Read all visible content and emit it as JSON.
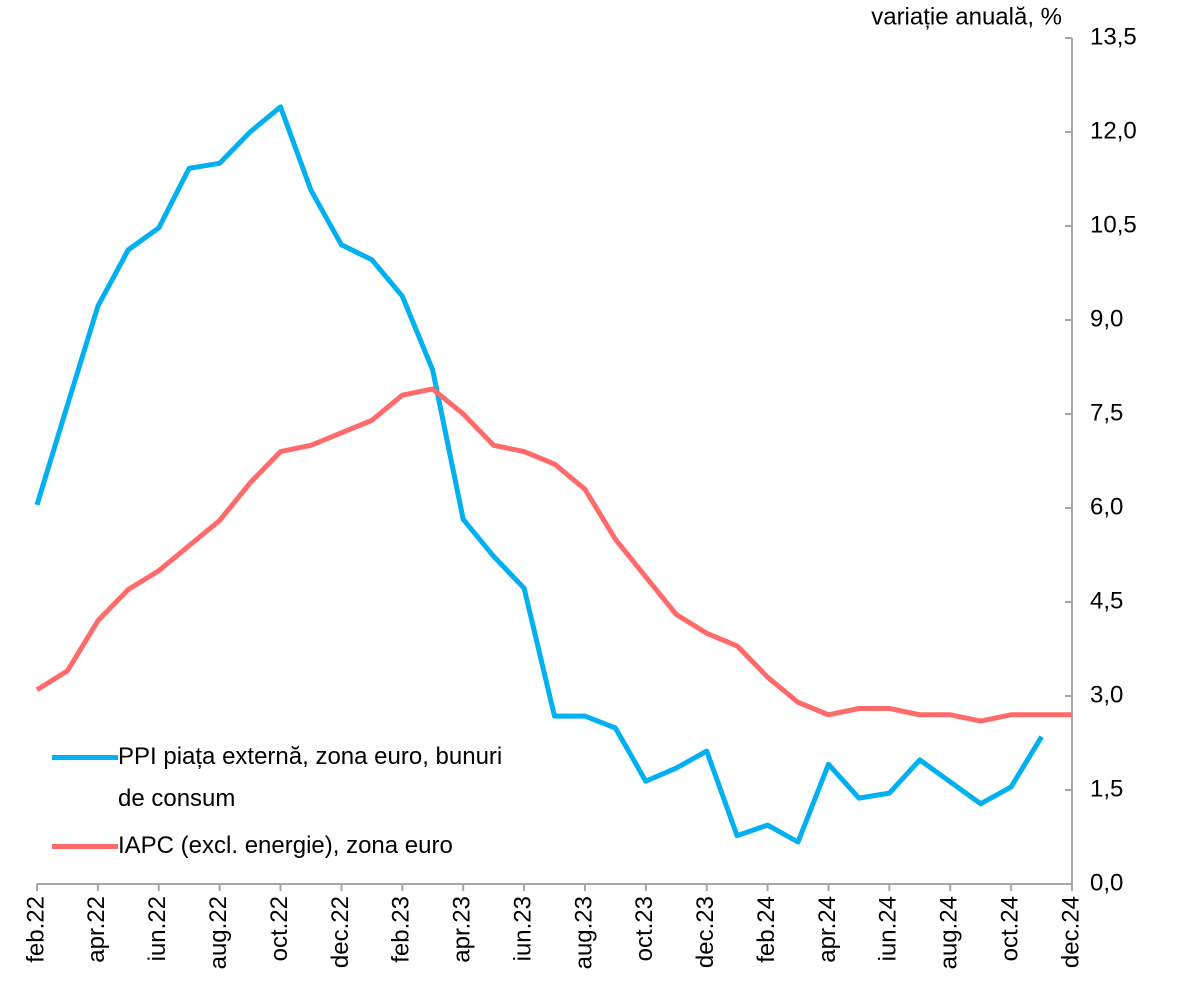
{
  "chart_data": {
    "type": "line",
    "y_axis_label": "variație anuală, %",
    "categories": [
      "feb.22",
      null,
      "apr.22",
      null,
      "iun.22",
      null,
      "aug.22",
      null,
      "oct.22",
      null,
      "dec.22",
      null,
      "feb.23",
      null,
      "apr.23",
      null,
      "iun.23",
      null,
      "aug.23",
      null,
      "oct.23",
      null,
      "dec.23",
      null,
      "feb.24",
      null,
      "apr.24",
      null,
      "iun.24",
      null,
      "aug.24",
      null,
      "oct.24",
      null,
      "dec.24"
    ],
    "series": [
      {
        "name": "PPI piața externă, zona euro, bunuri de consum",
        "color": "#00b0f0",
        "values": [
          6.05,
          7.64,
          9.22,
          10.12,
          10.47,
          11.42,
          11.5,
          12.0,
          12.4,
          11.07,
          10.2,
          9.96,
          9.38,
          8.2,
          5.82,
          5.23,
          4.72,
          2.68,
          2.68,
          2.49,
          1.64,
          1.85,
          2.12,
          0.77,
          0.94,
          0.67,
          1.91,
          1.37,
          1.45,
          1.98,
          1.63,
          1.28,
          1.55,
          2.35,
          null
        ]
      },
      {
        "name": "IAPC (excl. energie), zona euro",
        "color": "#ff6b6b",
        "values": [
          3.1,
          3.4,
          4.2,
          4.7,
          5.0,
          5.4,
          5.8,
          6.4,
          6.9,
          7.0,
          7.2,
          7.4,
          7.8,
          7.9,
          7.5,
          7.0,
          6.9,
          6.7,
          6.3,
          5.5,
          4.9,
          4.3,
          4.0,
          3.8,
          3.3,
          2.9,
          2.7,
          2.8,
          2.8,
          2.7,
          2.7,
          2.6,
          2.7,
          2.7,
          2.7
        ]
      }
    ],
    "ylim": [
      0,
      13.5
    ],
    "yticks": [
      {
        "value": 0,
        "label": "0,0"
      },
      {
        "value": 1.5,
        "label": "1,5"
      },
      {
        "value": 3,
        "label": "3,0"
      },
      {
        "value": 4.5,
        "label": "4,5"
      },
      {
        "value": 6,
        "label": "6,0"
      },
      {
        "value": 7.5,
        "label": "7,5"
      },
      {
        "value": 9,
        "label": "9,0"
      },
      {
        "value": 10.5,
        "label": "10,5"
      },
      {
        "value": 12,
        "label": "12,0"
      },
      {
        "value": 13.5,
        "label": "13,5"
      }
    ],
    "y_axis_side": "right",
    "legend": "bottom-left"
  }
}
